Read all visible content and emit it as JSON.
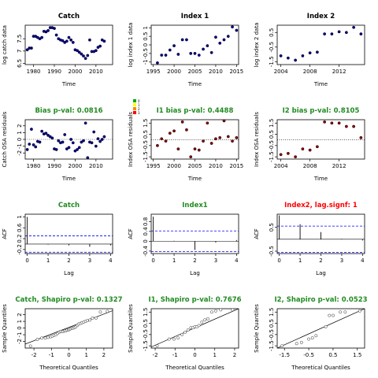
{
  "colors": {
    "point_fill": "#00008B",
    "point_red": "#8B0000",
    "title_black": "#000000",
    "title_green": "#228B22",
    "title_red": "#FF0000",
    "ci_line": "#0000FF",
    "zero_line": "#000000"
  },
  "chart_data": [
    {
      "id": "catch",
      "type": "scatter",
      "title": "Catch",
      "title_color": "black",
      "xlabel": "Time",
      "ylabel": "log catch data",
      "xlim": [
        1976,
        2018
      ],
      "ylim": [
        6.45,
        8.05
      ],
      "xticks": [
        1980,
        1990,
        2000,
        2010
      ],
      "yticks": [
        6.5,
        7.0,
        7.5
      ],
      "x": [
        1977,
        1978,
        1979,
        1980,
        1981,
        1982,
        1983,
        1984,
        1985,
        1986,
        1987,
        1988,
        1989,
        1990,
        1991,
        1992,
        1993,
        1994,
        1995,
        1996,
        1997,
        1998,
        1999,
        2000,
        2001,
        2002,
        2003,
        2004,
        2005,
        2006,
        2007,
        2008,
        2009,
        2010,
        2011,
        2012,
        2013,
        2014
      ],
      "y": [
        7.05,
        7.12,
        7.12,
        7.6,
        7.6,
        7.55,
        7.5,
        7.55,
        7.8,
        7.78,
        7.83,
        7.95,
        7.95,
        7.92,
        7.65,
        7.5,
        7.45,
        7.42,
        7.35,
        7.4,
        7.55,
        7.45,
        7.35,
        7.05,
        7.02,
        6.95,
        6.88,
        6.8,
        6.7,
        6.82,
        7.45,
        6.98,
        6.98,
        7.02,
        7.15,
        7.2,
        7.45,
        7.4
      ]
    },
    {
      "id": "index1",
      "type": "scatter",
      "title": "Index 1",
      "title_color": "black",
      "xlabel": "Time",
      "ylabel": "log index 1 data",
      "xlim": [
        1994.5,
        2015.5
      ],
      "ylim": [
        -1.15,
        1.15
      ],
      "xticks": [
        1995,
        2000,
        2005,
        2010,
        2015
      ],
      "yticks": [
        -1.0,
        -0.5,
        0.0,
        0.5,
        1.0
      ],
      "x": [
        1996,
        1997,
        1998,
        1999,
        2000,
        2001,
        2002,
        2003,
        2004,
        2005,
        2006,
        2007,
        2008,
        2009,
        2010,
        2011,
        2012,
        2013,
        2014,
        2015
      ],
      "y": [
        -1.05,
        -0.6,
        -0.6,
        -0.3,
        -0.05,
        -0.55,
        0.3,
        0.3,
        -0.5,
        -0.5,
        -0.6,
        -0.25,
        -0.05,
        -0.45,
        0.45,
        0.1,
        0.3,
        0.5,
        1.05,
        0.85
      ]
    },
    {
      "id": "index2",
      "type": "scatter",
      "title": "Index 2",
      "title_color": "black",
      "xlabel": "Time",
      "ylabel": "log index 2 data",
      "xlim": [
        2003.5,
        2015.5
      ],
      "ylim": [
        -1.7,
        1.0
      ],
      "xticks": [
        2004,
        2008,
        2012
      ],
      "yticks": [
        -1.5,
        -0.5,
        0.5
      ],
      "x": [
        2004,
        2005,
        2006,
        2007,
        2008,
        2009,
        2010,
        2011,
        2012,
        2013,
        2014,
        2015
      ],
      "y": [
        -1.1,
        -1.25,
        -1.4,
        -1.1,
        -0.9,
        -0.85,
        0.4,
        0.4,
        0.55,
        0.5,
        0.85,
        0.4
      ]
    },
    {
      "id": "bias_catch",
      "type": "scatter",
      "title": "Bias p-val: 0.0816",
      "title_color": "green",
      "xlabel": "Time",
      "ylabel": "Catch OSA residuals",
      "xlim": [
        1976,
        2018
      ],
      "ylim": [
        -2.9,
        2.9
      ],
      "xticks": [
        1980,
        1990,
        2000,
        2010
      ],
      "yticks": [
        -2,
        -1,
        0,
        1,
        2
      ],
      "legend_labels": [
        "0",
        "1",
        "2",
        "3"
      ],
      "x": [
        1977,
        1978,
        1979,
        1980,
        1981,
        1982,
        1983,
        1984,
        1985,
        1986,
        1987,
        1988,
        1989,
        1990,
        1991,
        1992,
        1993,
        1994,
        1995,
        1996,
        1997,
        1998,
        1999,
        2000,
        2001,
        2002,
        2003,
        2004,
        2005,
        2006,
        2007,
        2008,
        2009,
        2010,
        2011,
        2012,
        2013,
        2014
      ],
      "y": [
        -1.5,
        -0.7,
        1.5,
        -0.8,
        -1.1,
        -0.3,
        -0.4,
        1.2,
        0.8,
        0.9,
        0.6,
        0.4,
        0.2,
        -1.4,
        -1.5,
        -0.2,
        -0.5,
        -0.4,
        0.7,
        -1.4,
        -1.2,
        0.0,
        -0.5,
        -1.7,
        -1.5,
        -1.2,
        -0.4,
        -0.2,
        2.4,
        -2.7,
        -0.4,
        -0.5,
        1.1,
        -1.0,
        0.1,
        -0.3,
        0.0,
        0.4
      ]
    },
    {
      "id": "bias_i1",
      "type": "scatter",
      "title": "I1 bias p-val: 0.4488",
      "title_color": "green",
      "xlabel": "Time",
      "ylabel": "Index OSA residuals",
      "xlim": [
        1994.5,
        2015.5
      ],
      "ylim": [
        -1.7,
        1.8
      ],
      "xticks": [
        1995,
        2000,
        2005,
        2010,
        2015
      ],
      "yticks": [
        -1.5,
        -0.5,
        0.5,
        1.5
      ],
      "x": [
        1996,
        1997,
        1998,
        1999,
        2000,
        2001,
        2002,
        2003,
        2004,
        2005,
        2006,
        2007,
        2008,
        2009,
        2010,
        2011,
        2012,
        2013,
        2014,
        2015
      ],
      "y": [
        -0.5,
        0.1,
        -0.1,
        0.6,
        0.8,
        -0.8,
        1.6,
        0.9,
        -1.5,
        -0.8,
        -0.9,
        -0.1,
        1.5,
        -0.3,
        0.1,
        0.2,
        1.7,
        0.3,
        -0.1,
        0.2
      ]
    },
    {
      "id": "bias_i2",
      "type": "scatter",
      "title": "I2 bias p-val: 0.8105",
      "title_color": "green",
      "xlabel": "Time",
      "ylabel": "Index OSA residuals",
      "xlim": [
        2003.5,
        2015.5
      ],
      "ylim": [
        -1.7,
        1.8
      ],
      "xticks": [
        2004,
        2008,
        2012
      ],
      "yticks": [
        -1.5,
        -0.5,
        0.5,
        1.5
      ],
      "x": [
        2004,
        2005,
        2006,
        2007,
        2008,
        2009,
        2010,
        2011,
        2012,
        2013,
        2014,
        2015
      ],
      "y": [
        -1.3,
        -1.2,
        -1.5,
        -0.8,
        -0.9,
        -0.6,
        1.6,
        1.5,
        1.5,
        1.2,
        1.2,
        0.2
      ]
    },
    {
      "id": "acf_catch",
      "type": "bar",
      "title": "Catch",
      "title_color": "green",
      "xlabel": "Lag",
      "ylabel": "ACF",
      "xlim": [
        -0.1,
        4.1
      ],
      "ylim": [
        -0.35,
        1.1
      ],
      "xticks": [
        0,
        1,
        2,
        3,
        4
      ],
      "yticks": [
        -0.2,
        0.2,
        0.6,
        1.0
      ],
      "ci": 0.3,
      "x": [
        0,
        1,
        2,
        3,
        4
      ],
      "values": [
        1.0,
        -0.02,
        -0.05,
        -0.1,
        -0.05
      ]
    },
    {
      "id": "acf_i1",
      "type": "bar",
      "title": "Index1",
      "title_color": "green",
      "xlabel": "Lag",
      "ylabel": "ACF",
      "xlim": [
        -0.1,
        4.1
      ],
      "ylim": [
        -0.5,
        1.1
      ],
      "xticks": [
        0,
        1,
        2,
        3,
        4
      ],
      "yticks": [
        -0.4,
        0.0,
        0.4,
        0.8
      ],
      "ci": 0.42,
      "x": [
        0,
        1,
        2,
        3,
        4
      ],
      "values": [
        1.0,
        0.02,
        -0.35,
        -0.05,
        0.05
      ]
    },
    {
      "id": "acf_i2",
      "type": "bar",
      "title": "Index2, lag.signf: 1",
      "title_color": "red",
      "xlabel": "Lag",
      "ylabel": "ACF",
      "xlim": [
        -0.1,
        4.1
      ],
      "ylim": [
        -0.6,
        1.05
      ],
      "xticks": [
        0,
        1,
        2,
        3,
        4
      ],
      "yticks": [
        -0.5,
        0.5
      ],
      "ci": 0.55,
      "x": [
        0,
        1,
        2,
        3,
        4
      ],
      "values": [
        1.0,
        0.63,
        0.3,
        0.02,
        -0.05
      ]
    },
    {
      "id": "qq_catch",
      "type": "scatter",
      "title": "Catch, Shapiro p-val: 0.1327",
      "title_color": "green",
      "xlabel": "Theoretical Quantiles",
      "ylabel": "Sample Quantiles",
      "xlim": [
        -2.5,
        2.5
      ],
      "ylim": [
        -3.0,
        2.9
      ],
      "xticks": [
        -2,
        -1,
        0,
        1,
        2
      ],
      "yticks": [
        -2,
        -1,
        0,
        1,
        2
      ],
      "qqline": [
        [
          -2.5,
          -2.4
        ],
        [
          2.5,
          2.6
        ]
      ],
      "x": [
        -2.2,
        -1.8,
        -1.55,
        -1.35,
        -1.2,
        -1.05,
        -0.95,
        -0.85,
        -0.75,
        -0.65,
        -0.55,
        -0.48,
        -0.4,
        -0.32,
        -0.25,
        -0.18,
        -0.1,
        -0.03,
        0.03,
        0.1,
        0.18,
        0.25,
        0.32,
        0.4,
        0.48,
        0.55,
        0.65,
        0.75,
        0.85,
        0.95,
        1.05,
        1.2,
        1.35,
        1.55,
        1.8,
        2.2
      ],
      "y": [
        -2.7,
        -1.7,
        -1.5,
        -1.5,
        -1.4,
        -1.3,
        -1.2,
        -1.1,
        -1.0,
        -0.8,
        -0.6,
        -0.5,
        -0.5,
        -0.5,
        -0.4,
        -0.4,
        -0.3,
        -0.3,
        -0.2,
        -0.1,
        0.0,
        0.0,
        0.1,
        0.2,
        0.4,
        0.6,
        0.7,
        0.8,
        0.9,
        1.0,
        1.1,
        1.2,
        1.5,
        1.5,
        2.4,
        2.5
      ]
    },
    {
      "id": "qq_i1",
      "type": "scatter",
      "title": "I1, Shapiro p-val: 0.7676",
      "title_color": "green",
      "xlabel": "Theoretical Quantiles",
      "ylabel": "Sample Quantiles",
      "xlim": [
        -2.2,
        2.2
      ],
      "ylim": [
        -1.7,
        1.8
      ],
      "xticks": [
        -2,
        -1,
        0,
        1,
        2
      ],
      "yticks": [
        -1.5,
        -0.5,
        0.5,
        1.5
      ],
      "qqline": [
        [
          -2.2,
          -1.6
        ],
        [
          2.2,
          1.8
        ]
      ],
      "x": [
        -1.9,
        -1.3,
        -1.05,
        -0.85,
        -0.65,
        -0.5,
        -0.35,
        -0.2,
        -0.1,
        0.0,
        0.1,
        0.2,
        0.35,
        0.5,
        0.65,
        0.85,
        1.05,
        1.3,
        1.9
      ],
      "y": [
        -1.5,
        -0.9,
        -0.9,
        -0.8,
        -0.5,
        -0.3,
        -0.1,
        0.1,
        0.1,
        0.2,
        0.2,
        0.3,
        0.6,
        0.8,
        0.9,
        1.5,
        1.6,
        1.7,
        1.7
      ]
    },
    {
      "id": "qq_i2",
      "type": "scatter",
      "title": "I2, Shapiro p-val: 0.0523",
      "title_color": "green",
      "xlabel": "Theoretical Quantiles",
      "ylabel": "Sample Quantiles",
      "xlim": [
        -1.8,
        1.8
      ],
      "ylim": [
        -1.7,
        1.8
      ],
      "xticks": [
        -1.5,
        -0.5,
        0.5,
        1.5
      ],
      "yticks": [
        -1.5,
        -0.5,
        0.5,
        1.5
      ],
      "qqline": [
        [
          -1.8,
          -1.7
        ],
        [
          1.8,
          1.8
        ]
      ],
      "x": [
        -1.6,
        -1.0,
        -0.8,
        -0.5,
        -0.35,
        -0.2,
        0.2,
        0.35,
        0.5,
        0.8,
        1.0,
        1.6
      ],
      "y": [
        -1.5,
        -1.3,
        -1.2,
        -0.9,
        -0.8,
        -0.6,
        0.2,
        1.2,
        1.2,
        1.5,
        1.5,
        1.6
      ]
    }
  ]
}
